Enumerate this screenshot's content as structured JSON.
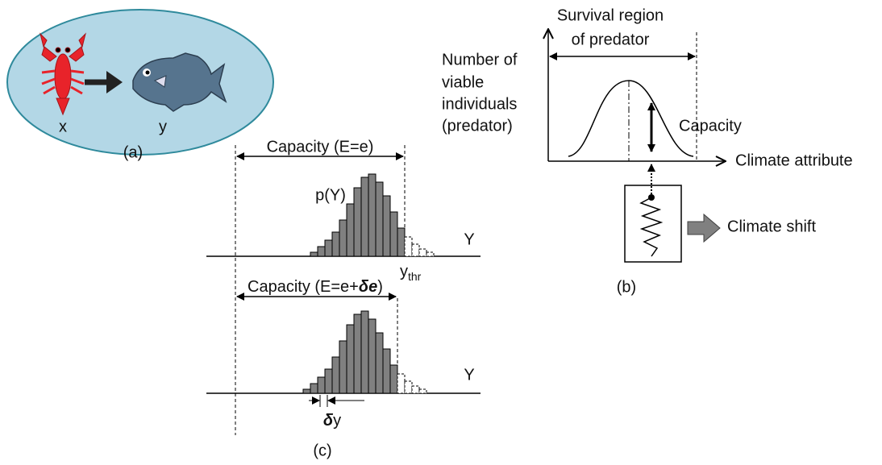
{
  "panel_a": {
    "prey_label": "x",
    "predator_label": "y",
    "caption": "(a)"
  },
  "panel_b": {
    "title_lines": [
      "Survival region",
      "of predator"
    ],
    "y_label_lines": [
      "Number of",
      "viable",
      "individuals",
      "(predator)"
    ],
    "capacity_label": "Capacity",
    "x_label": "Climate attribute",
    "shift_label": "Climate shift",
    "caption": "(b)"
  },
  "panel_c": {
    "top_capacity": "Capacity (E=e)",
    "distribution_label": "p(Y)",
    "top_axis_label": "Y",
    "threshold_main": "y",
    "threshold_sub": "thr",
    "bottom_capacity_parts": [
      "Capacity (E=e+",
      "δe",
      ")"
    ],
    "bottom_axis_label": "Y",
    "shift_symbol": "δ",
    "shift_var": "y",
    "caption": "(c)"
  }
}
